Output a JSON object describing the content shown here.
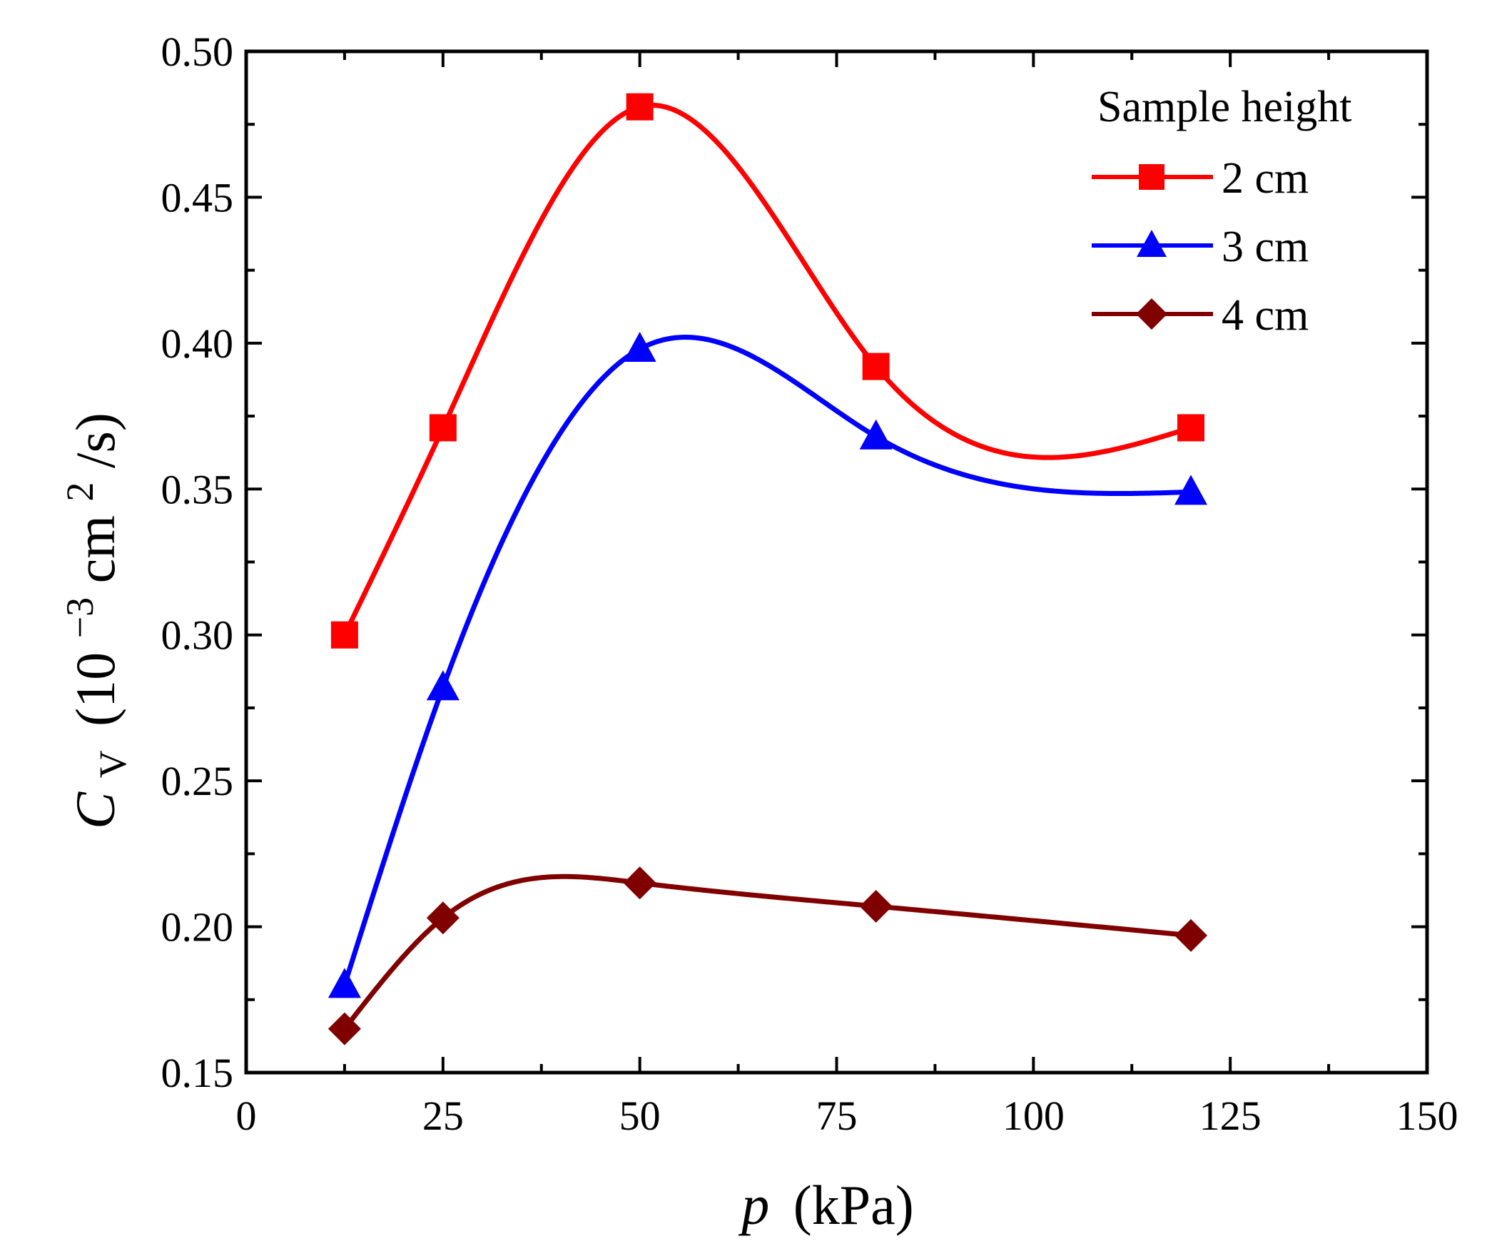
{
  "chart_data": {
    "type": "line",
    "title": "",
    "xlabel": "p (kPa)",
    "xlabel_var": "p",
    "xlabel_unit": "(kPa)",
    "ylabel_var": "C",
    "ylabel_sub": "V",
    "ylabel_pre": "(10",
    "ylabel_exp1": "−3",
    "ylabel_mid": "cm",
    "ylabel_exp2": "2",
    "ylabel_post": "/s)",
    "xlim": [
      0,
      150
    ],
    "ylim": [
      0.15,
      0.5
    ],
    "xticks": [
      0,
      25,
      50,
      75,
      100,
      125,
      150
    ],
    "xtick_labels": [
      "0",
      "25",
      "50",
      "75",
      "100",
      "125",
      "150"
    ],
    "yticks": [
      0.15,
      0.2,
      0.25,
      0.3,
      0.35,
      0.4,
      0.45,
      0.5
    ],
    "ytick_labels": [
      "0.15",
      "0.20",
      "0.25",
      "0.30",
      "0.35",
      "0.40",
      "0.45",
      "0.50"
    ],
    "legend_title": "Sample height",
    "legend_position": "top-right",
    "x": [
      12.5,
      25,
      50,
      80,
      120
    ],
    "series": [
      {
        "name": "2 cm",
        "marker": "square",
        "color": "#ff0000",
        "values": [
          0.3,
          0.371,
          0.481,
          0.392,
          0.371
        ]
      },
      {
        "name": "3 cm",
        "marker": "triangle",
        "color": "#0000ff",
        "values": [
          0.18,
          0.282,
          0.398,
          0.368,
          0.349
        ]
      },
      {
        "name": "4 cm",
        "marker": "diamond",
        "color": "#800000",
        "values": [
          0.165,
          0.203,
          0.215,
          0.207,
          0.197
        ]
      }
    ]
  }
}
